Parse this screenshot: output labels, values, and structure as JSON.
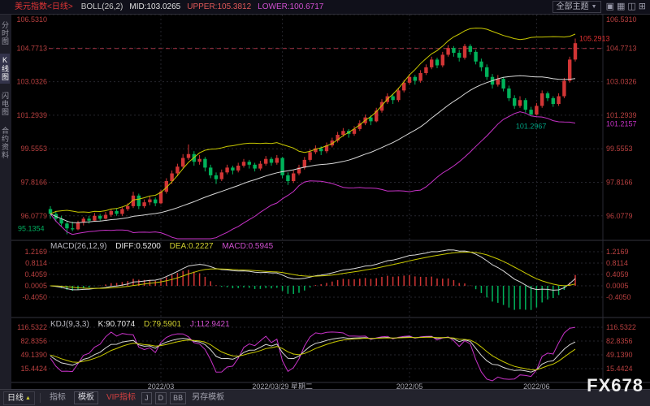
{
  "topbar": {
    "symbol": "美元指数<日线>",
    "indicator": "BOLL(26,2)",
    "mid_label": "MID:103.0265",
    "upper_label": "UPPER:105.3812",
    "lower_label": "LOWER:100.6717",
    "theme_selector": "全部主题",
    "dropdown_arrow": "▼",
    "icons": [
      "▣",
      "▦",
      "◫",
      "⊞"
    ]
  },
  "sidebar": {
    "items": [
      {
        "label": "分时图",
        "selected": false
      },
      {
        "label": "K线图",
        "selected": true
      },
      {
        "label": "闪电图",
        "selected": false
      },
      {
        "label": "合约资料",
        "selected": false
      }
    ]
  },
  "macd_header": {
    "name": "MACD(26,12,9)",
    "diff": "DIFF:0.5200",
    "dea": "DEA:0.2227",
    "macd": "MACD:0.5945"
  },
  "kdj_header": {
    "name": "KDJ(9,3,3)",
    "k": "K:90.7074",
    "d": "D:79.5901",
    "j": "J:112.9421"
  },
  "toolbar": {
    "period": "日线",
    "period_arrow": "▲",
    "tabs": [
      "指标",
      "模板",
      "VIP指标",
      "J",
      "D",
      "BB",
      "另存模板"
    ]
  },
  "watermark": "FX678",
  "chart_data": {
    "type": "candlestick",
    "title": "美元指数 日线 BOLL(26,2) + MACD(26,12,9) + KDJ(9,3,3)",
    "y_axis_main": [
      "106.5310",
      "104.7713",
      "103.0326",
      "101.2939",
      "99.5553",
      "97.8166",
      "96.0779"
    ],
    "y_axis_macd": [
      "1.2169",
      "0.8114",
      "0.4059",
      "0.0005",
      "-0.4050"
    ],
    "y_axis_kdj": [
      "116.5322",
      "82.8356",
      "49.1390",
      "15.4424"
    ],
    "x_ticks": [
      {
        "i": 20,
        "label": "2022/03"
      },
      {
        "i": 42,
        "label": "2022/03/29 星期二"
      },
      {
        "i": 65,
        "label": "2022/05"
      },
      {
        "i": 88,
        "label": "2022/06"
      }
    ],
    "alert_line": 104.7713,
    "boll": {
      "period": 26,
      "k": 2
    },
    "markers": {
      "low": "95.1354",
      "pullback_low": "101.2967",
      "last_price": "105.2913",
      "lower_band_right": "101.2157"
    },
    "colors": {
      "up": "#d23535",
      "down": "#00b25a",
      "boll_mid": "#d8d8d8",
      "boll_upper": "#c8c800",
      "boll_lower": "#c832c8",
      "k_line": "#d8d8d8",
      "d_line": "#c8c800",
      "j_line": "#c832c8",
      "axis_text": "#b84040"
    },
    "candles": [
      [
        96.45,
        96.6,
        95.95,
        96.2
      ],
      [
        96.2,
        96.35,
        95.8,
        95.95
      ],
      [
        95.95,
        96.1,
        95.55,
        95.7
      ],
      [
        95.7,
        95.85,
        95.14,
        95.45
      ],
      [
        95.45,
        95.8,
        95.3,
        95.4
      ],
      [
        95.4,
        95.85,
        95.35,
        95.75
      ],
      [
        95.75,
        96.05,
        95.6,
        95.95
      ],
      [
        95.95,
        96.1,
        95.7,
        95.85
      ],
      [
        95.85,
        96.25,
        95.8,
        96.1
      ],
      [
        96.1,
        96.2,
        95.85,
        95.95
      ],
      [
        95.95,
        96.3,
        95.9,
        96.15
      ],
      [
        96.15,
        96.45,
        96.05,
        96.35
      ],
      [
        96.35,
        96.5,
        96.1,
        96.2
      ],
      [
        96.2,
        96.55,
        96.1,
        96.45
      ],
      [
        96.45,
        96.75,
        96.35,
        96.6
      ],
      [
        96.6,
        97.35,
        96.5,
        97.15
      ],
      [
        97.15,
        97.25,
        96.45,
        96.6
      ],
      [
        96.6,
        96.95,
        96.5,
        96.8
      ],
      [
        96.8,
        97.1,
        96.65,
        96.95
      ],
      [
        96.95,
        97.05,
        96.6,
        96.75
      ],
      [
        96.75,
        97.45,
        96.7,
        97.35
      ],
      [
        97.35,
        98.05,
        97.25,
        97.9
      ],
      [
        97.9,
        98.45,
        97.75,
        98.3
      ],
      [
        98.3,
        98.8,
        98.15,
        98.65
      ],
      [
        98.65,
        99.3,
        98.55,
        99.1
      ],
      [
        99.1,
        99.8,
        99.0,
        99.3
      ],
      [
        99.3,
        99.45,
        98.7,
        98.9
      ],
      [
        98.9,
        99.25,
        98.75,
        99.05
      ],
      [
        99.05,
        99.15,
        98.4,
        98.6
      ],
      [
        98.6,
        98.75,
        98.05,
        98.2
      ],
      [
        98.2,
        98.35,
        97.75,
        98.0
      ],
      [
        98.0,
        98.5,
        97.9,
        98.35
      ],
      [
        98.35,
        98.75,
        98.25,
        98.6
      ],
      [
        98.6,
        98.7,
        98.25,
        98.45
      ],
      [
        98.45,
        98.85,
        98.35,
        98.7
      ],
      [
        98.7,
        99.05,
        98.6,
        98.9
      ],
      [
        98.9,
        99.0,
        98.55,
        98.75
      ],
      [
        98.75,
        98.85,
        98.4,
        98.55
      ],
      [
        98.55,
        98.95,
        98.45,
        98.8
      ],
      [
        98.8,
        99.2,
        98.7,
        99.05
      ],
      [
        99.05,
        99.15,
        98.7,
        98.85
      ],
      [
        98.85,
        99.25,
        98.75,
        99.1
      ],
      [
        99.1,
        99.15,
        98.05,
        98.2
      ],
      [
        98.2,
        98.35,
        97.7,
        97.9
      ],
      [
        97.9,
        98.45,
        97.8,
        98.3
      ],
      [
        98.3,
        98.75,
        98.2,
        98.6
      ],
      [
        98.6,
        99.15,
        98.5,
        99.0
      ],
      [
        99.0,
        99.55,
        98.9,
        99.4
      ],
      [
        99.4,
        99.75,
        99.3,
        99.6
      ],
      [
        99.6,
        99.7,
        99.25,
        99.45
      ],
      [
        99.45,
        99.9,
        99.35,
        99.75
      ],
      [
        99.75,
        100.15,
        99.65,
        100.0
      ],
      [
        100.0,
        100.45,
        99.9,
        100.3
      ],
      [
        100.3,
        100.65,
        100.2,
        100.5
      ],
      [
        100.5,
        100.6,
        100.15,
        100.35
      ],
      [
        100.35,
        100.75,
        100.25,
        100.6
      ],
      [
        100.6,
        101.05,
        100.5,
        100.9
      ],
      [
        100.9,
        101.35,
        100.8,
        101.2
      ],
      [
        101.2,
        101.3,
        100.8,
        101.0
      ],
      [
        101.0,
        101.7,
        100.95,
        101.55
      ],
      [
        101.55,
        102.15,
        101.45,
        102.0
      ],
      [
        102.0,
        102.45,
        101.9,
        102.3
      ],
      [
        102.3,
        102.4,
        101.9,
        102.1
      ],
      [
        102.1,
        102.75,
        102.0,
        102.6
      ],
      [
        102.6,
        103.15,
        102.5,
        103.0
      ],
      [
        103.0,
        103.45,
        102.9,
        103.3
      ],
      [
        103.3,
        103.4,
        102.9,
        103.1
      ],
      [
        103.1,
        103.65,
        103.0,
        103.5
      ],
      [
        103.5,
        103.95,
        103.4,
        103.8
      ],
      [
        103.8,
        104.35,
        103.7,
        104.2
      ],
      [
        104.2,
        104.3,
        103.75,
        103.9
      ],
      [
        103.9,
        104.6,
        103.8,
        104.45
      ],
      [
        104.45,
        104.95,
        104.35,
        104.8
      ],
      [
        104.8,
        104.9,
        104.35,
        104.55
      ],
      [
        104.55,
        104.7,
        104.1,
        104.3
      ],
      [
        104.3,
        105.01,
        104.2,
        104.9
      ],
      [
        104.9,
        105.0,
        104.45,
        104.6
      ],
      [
        104.6,
        104.7,
        103.95,
        104.1
      ],
      [
        104.1,
        104.25,
        103.6,
        103.8
      ],
      [
        103.8,
        103.95,
        103.15,
        103.3
      ],
      [
        103.3,
        103.45,
        102.7,
        102.9
      ],
      [
        102.9,
        103.4,
        102.8,
        103.2
      ],
      [
        103.2,
        103.3,
        102.55,
        102.7
      ],
      [
        102.7,
        102.85,
        102.05,
        102.2
      ],
      [
        102.2,
        102.35,
        101.65,
        101.8
      ],
      [
        101.8,
        102.3,
        101.7,
        102.1
      ],
      [
        102.1,
        102.2,
        101.45,
        101.6
      ],
      [
        101.6,
        101.75,
        101.3,
        101.35
      ],
      [
        101.35,
        101.95,
        101.3,
        101.8
      ],
      [
        101.8,
        102.6,
        101.7,
        102.45
      ],
      [
        102.45,
        102.55,
        102.05,
        102.2
      ],
      [
        102.2,
        102.3,
        101.75,
        101.9
      ],
      [
        101.9,
        102.45,
        101.8,
        102.3
      ],
      [
        102.3,
        103.25,
        102.2,
        103.1
      ],
      [
        103.1,
        104.35,
        103.0,
        104.2
      ],
      [
        104.2,
        105.29,
        104.1,
        105.05
      ]
    ]
  }
}
